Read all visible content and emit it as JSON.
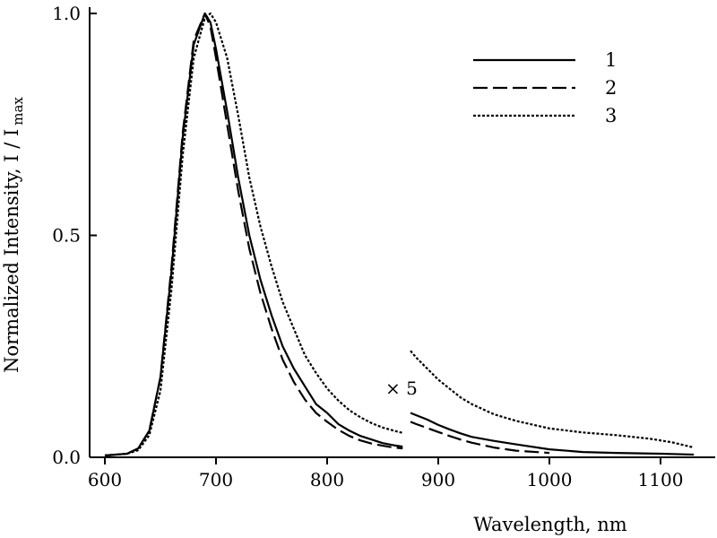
{
  "chart_data": {
    "type": "line",
    "xlabel": "Wavelength, nm",
    "ylabel": "Normalized Intensity, I / I",
    "ylabel_sub": "max",
    "annotation": "× 5",
    "xlim": [
      600,
      1130
    ],
    "ylim": [
      0,
      1
    ],
    "x_ticks": [
      600,
      700,
      800,
      900,
      1000,
      1100
    ],
    "y_ticks": [
      0.0,
      0.5,
      1.0
    ],
    "y_tick_labels": [
      "0.0",
      "0.5",
      "1.0"
    ],
    "x_break": 870,
    "grid": false,
    "legend_position": "top-right",
    "legend": [
      "1",
      "2",
      "3"
    ],
    "series": [
      {
        "name": "1",
        "line_style": "solid",
        "segments": [
          {
            "x": [
              600,
              620,
              630,
              640,
              650,
              660,
              670,
              680,
              690,
              695,
              700,
              710,
              720,
              730,
              740,
              750,
              760,
              770,
              780,
              790,
              800,
              810,
              820,
              830,
              840,
              850,
              860,
              868
            ],
            "y": [
              0.004,
              0.008,
              0.02,
              0.06,
              0.18,
              0.42,
              0.72,
              0.93,
              1.0,
              0.98,
              0.92,
              0.78,
              0.63,
              0.5,
              0.4,
              0.32,
              0.25,
              0.2,
              0.16,
              0.12,
              0.1,
              0.075,
              0.06,
              0.048,
              0.04,
              0.032,
              0.027,
              0.024
            ]
          },
          {
            "x": [
              875,
              880,
              890,
              900,
              910,
              920,
              930,
              950,
              970,
              1000,
              1030,
              1060,
              1100,
              1130
            ],
            "y": [
              0.1,
              0.095,
              0.085,
              0.073,
              0.063,
              0.054,
              0.046,
              0.037,
              0.029,
              0.018,
              0.012,
              0.01,
              0.008,
              0.006
            ]
          }
        ]
      },
      {
        "name": "2",
        "line_style": "dashed",
        "segments": [
          {
            "x": [
              600,
              620,
              630,
              640,
              650,
              660,
              670,
              680,
              690,
              695,
              700,
              710,
              720,
              730,
              740,
              750,
              760,
              770,
              780,
              790,
              800,
              810,
              820,
              830,
              840,
              850,
              860,
              868
            ],
            "y": [
              0.004,
              0.008,
              0.02,
              0.06,
              0.18,
              0.43,
              0.73,
              0.94,
              1.0,
              0.97,
              0.9,
              0.75,
              0.6,
              0.47,
              0.37,
              0.29,
              0.22,
              0.17,
              0.13,
              0.1,
              0.08,
              0.062,
              0.048,
              0.038,
              0.031,
              0.026,
              0.022,
              0.02
            ]
          },
          {
            "x": [
              875,
              880,
              890,
              900,
              910,
              920,
              930,
              950,
              970,
              1000
            ],
            "y": [
              0.08,
              0.075,
              0.066,
              0.057,
              0.048,
              0.04,
              0.033,
              0.022,
              0.015,
              0.01
            ]
          }
        ]
      },
      {
        "name": "3",
        "line_style": "dotted",
        "segments": [
          {
            "x": [
              600,
              620,
              630,
              640,
              650,
              660,
              670,
              680,
              690,
              695,
              700,
              710,
              720,
              730,
              740,
              750,
              760,
              770,
              780,
              790,
              800,
              810,
              820,
              830,
              840,
              850,
              860,
              868
            ],
            "y": [
              0.004,
              0.008,
              0.016,
              0.05,
              0.15,
              0.38,
              0.68,
              0.9,
              0.99,
              1.0,
              0.98,
              0.9,
              0.77,
              0.63,
              0.52,
              0.43,
              0.35,
              0.29,
              0.23,
              0.19,
              0.155,
              0.128,
              0.106,
              0.09,
              0.077,
              0.067,
              0.06,
              0.055
            ]
          },
          {
            "x": [
              875,
              880,
              890,
              900,
              910,
              920,
              930,
              950,
              970,
              1000,
              1030,
              1060,
              1090,
              1110,
              1130
            ],
            "y": [
              0.24,
              0.225,
              0.2,
              0.175,
              0.155,
              0.135,
              0.12,
              0.097,
              0.082,
              0.065,
              0.056,
              0.05,
              0.042,
              0.034,
              0.022
            ]
          }
        ]
      }
    ]
  }
}
